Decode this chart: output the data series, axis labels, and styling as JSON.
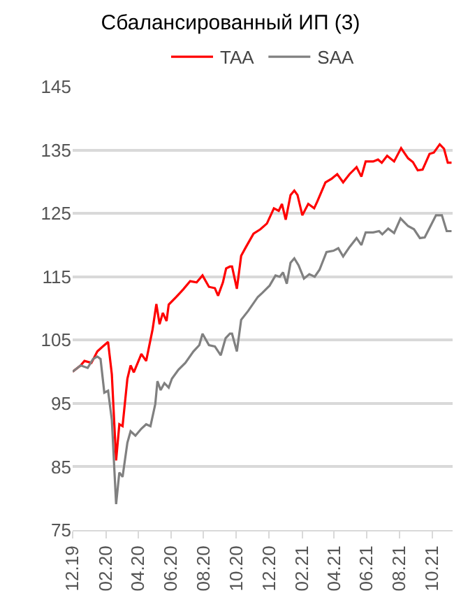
{
  "chart_data": {
    "type": "line",
    "title": "Сбалансированный ИП (3)",
    "xlim": [
      "2019-12-01",
      "2021-11-08"
    ],
    "xticks": [
      {
        "value": "2019-12-01",
        "label": "12.19"
      },
      {
        "value": "2020-02-01",
        "label": "02.20"
      },
      {
        "value": "2020-04-01",
        "label": "04.20"
      },
      {
        "value": "2020-06-01",
        "label": "06.20"
      },
      {
        "value": "2020-08-01",
        "label": "08.20"
      },
      {
        "value": "2020-10-01",
        "label": "10.20"
      },
      {
        "value": "2020-12-01",
        "label": "12.20"
      },
      {
        "value": "2021-02-01",
        "label": "02.21"
      },
      {
        "value": "2021-04-01",
        "label": "04.21"
      },
      {
        "value": "2021-06-01",
        "label": "06.21"
      },
      {
        "value": "2021-08-01",
        "label": "08.21"
      },
      {
        "value": "2021-10-01",
        "label": "10.21"
      }
    ],
    "ylim": [
      75,
      145
    ],
    "yticks": [
      75,
      85,
      95,
      105,
      115,
      125,
      135,
      145
    ],
    "grid": "y",
    "legend": "top",
    "marker": "none",
    "line_style": "solid",
    "series": [
      {
        "name": "TAA",
        "color": "#ff0000",
        "x": [
          "2019-12-01",
          "2019-12-16",
          "2019-12-23",
          "2020-01-05",
          "2020-01-16",
          "2020-01-25",
          "2020-02-05",
          "2020-02-12",
          "2020-02-20",
          "2020-02-26",
          "2020-03-03",
          "2020-03-12",
          "2020-03-18",
          "2020-03-24",
          "2020-04-07",
          "2020-04-16",
          "2020-04-28",
          "2020-05-05",
          "2020-05-11",
          "2020-05-17",
          "2020-05-24",
          "2020-05-28",
          "2020-06-11",
          "2020-06-24",
          "2020-07-07",
          "2020-07-19",
          "2020-07-30",
          "2020-08-11",
          "2020-08-22",
          "2020-08-28",
          "2020-09-06",
          "2020-09-12",
          "2020-09-19",
          "2020-09-23",
          "2020-10-02",
          "2020-10-10",
          "2020-10-19",
          "2020-11-02",
          "2020-11-15",
          "2020-11-27",
          "2020-12-10",
          "2020-12-19",
          "2020-12-25",
          "2021-01-01",
          "2021-01-10",
          "2021-01-17",
          "2021-01-23",
          "2021-02-01",
          "2021-02-12",
          "2021-02-23",
          "2021-03-01",
          "2021-03-16",
          "2021-03-28",
          "2021-04-07",
          "2021-04-18",
          "2021-04-30",
          "2021-05-13",
          "2021-05-22",
          "2021-05-30",
          "2021-06-13",
          "2021-06-22",
          "2021-06-29",
          "2021-07-09",
          "2021-07-22",
          "2021-08-04",
          "2021-08-17",
          "2021-08-26",
          "2021-09-04",
          "2021-09-13",
          "2021-09-26",
          "2021-10-04",
          "2021-10-15",
          "2021-10-23",
          "2021-10-30",
          "2021-11-06"
        ],
        "values": [
          100,
          101,
          101.7,
          101.4,
          103.2,
          103.9,
          104.7,
          99.6,
          86,
          91.7,
          91.4,
          98.9,
          101,
          99.9,
          102.8,
          101.7,
          106.7,
          110.7,
          107.5,
          109.3,
          108,
          110.6,
          111.8,
          113,
          114.3,
          114.1,
          115.2,
          113.4,
          113.2,
          112,
          114.1,
          116.3,
          116.6,
          116.6,
          113.1,
          118.3,
          119.7,
          121.8,
          122.5,
          123.4,
          125.8,
          125.4,
          126.5,
          124,
          127.9,
          128.6,
          127.9,
          124.7,
          126.5,
          125.8,
          126.9,
          129.9,
          130.5,
          131.2,
          129.9,
          131.2,
          132.3,
          130.8,
          133.2,
          133.2,
          133.5,
          133,
          134.1,
          133.2,
          135.3,
          133.7,
          133.1,
          131.8,
          131.9,
          134.4,
          134.6,
          135.9,
          135.2,
          133,
          133
        ]
      },
      {
        "name": "SAA",
        "color": "#808080",
        "x": [
          "2019-12-01",
          "2019-12-16",
          "2019-12-29",
          "2020-01-08",
          "2020-01-16",
          "2020-01-22",
          "2020-01-29",
          "2020-02-05",
          "2020-02-12",
          "2020-02-20",
          "2020-02-26",
          "2020-03-03",
          "2020-03-12",
          "2020-03-18",
          "2020-03-27",
          "2020-04-07",
          "2020-04-16",
          "2020-04-24",
          "2020-05-03",
          "2020-05-07",
          "2020-05-13",
          "2020-05-20",
          "2020-05-28",
          "2020-06-03",
          "2020-06-15",
          "2020-06-28",
          "2020-07-13",
          "2020-07-24",
          "2020-07-30",
          "2020-08-11",
          "2020-08-22",
          "2020-09-02",
          "2020-09-11",
          "2020-09-19",
          "2020-09-23",
          "2020-10-02",
          "2020-10-10",
          "2020-10-23",
          "2020-11-10",
          "2020-11-19",
          "2020-12-02",
          "2020-12-13",
          "2020-12-21",
          "2020-12-27",
          "2021-01-03",
          "2021-01-10",
          "2021-01-17",
          "2021-01-25",
          "2021-02-04",
          "2021-02-14",
          "2021-02-24",
          "2021-03-05",
          "2021-03-18",
          "2021-03-31",
          "2021-04-09",
          "2021-04-18",
          "2021-04-30",
          "2021-05-13",
          "2021-05-22",
          "2021-05-30",
          "2021-06-13",
          "2021-06-24",
          "2021-06-30",
          "2021-07-11",
          "2021-07-22",
          "2021-08-03",
          "2021-08-17",
          "2021-08-28",
          "2021-09-08",
          "2021-09-17",
          "2021-09-26",
          "2021-10-08",
          "2021-10-19",
          "2021-10-28",
          "2021-11-06"
        ],
        "values": [
          100,
          101,
          100.6,
          102,
          102.4,
          102,
          96.7,
          97,
          92.4,
          79.1,
          84.1,
          83.4,
          88.8,
          90.6,
          89.9,
          91,
          91.7,
          91.4,
          94.9,
          98.5,
          97.1,
          98.2,
          97.5,
          98.9,
          100.3,
          101.4,
          103.2,
          104.2,
          106,
          104.2,
          104,
          102.6,
          105.3,
          106,
          106,
          103.2,
          108.2,
          109.6,
          111.8,
          112.5,
          113.6,
          115.2,
          115,
          115.7,
          113.9,
          117.2,
          117.9,
          116.8,
          114.7,
          115.4,
          115,
          116.1,
          118.9,
          119.1,
          119.5,
          118.2,
          119.7,
          121.1,
          120,
          122,
          122,
          122.2,
          121.7,
          122.6,
          121.9,
          124.2,
          123,
          122.5,
          121.1,
          121.2,
          122.7,
          124.7,
          124.7,
          122.2,
          122.2
        ]
      }
    ]
  }
}
